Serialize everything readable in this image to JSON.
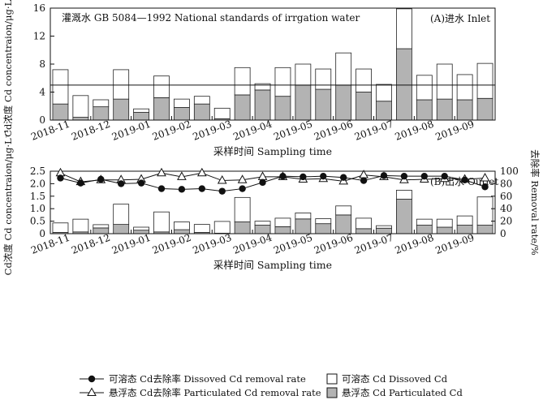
{
  "chart_data": [
    {
      "id": "inlet",
      "type": "bar",
      "panel_label": "(A)进水 Inlet",
      "annotation": "灌溉水 GB 5084—1992 National standards of irrgation water",
      "reference_line": 5,
      "ylabel": "Cd浓度 Cd concentraion/μg·L⁻¹",
      "xlabel": "采样时间 Sampling time",
      "ylim": [
        0,
        16
      ],
      "yticks": [
        0,
        4,
        8,
        12,
        16
      ],
      "categories": [
        "2018-11",
        "2018-11",
        "2018-12",
        "2018-12",
        "2019-01",
        "2019-01",
        "2019-02",
        "2019-02",
        "2019-03",
        "2019-03",
        "2019-04",
        "2019-04",
        "2019-05",
        "2019-05",
        "2019-06",
        "2019-06",
        "2019-07",
        "2019-07",
        "2019-08",
        "2019-08",
        "2019-09",
        "2019-09"
      ],
      "xtick_labels": [
        "2018-11",
        "2018-12",
        "2019-01",
        "2019-02",
        "2019-03",
        "2019-04",
        "2019-05",
        "2019-06",
        "2019-07",
        "2019-08",
        "2019-09"
      ],
      "stacked": true,
      "series": [
        {
          "name": "悬浮态 Cd  Particulated Cd",
          "color": "#b3b3b3",
          "values": [
            2.3,
            0.4,
            1.9,
            3.0,
            1.1,
            3.2,
            1.8,
            2.3,
            0.2,
            3.6,
            4.3,
            3.4,
            5.0,
            4.4,
            5.0,
            4.0,
            2.7,
            10.2,
            2.9,
            3.0,
            2.9,
            3.1
          ]
        },
        {
          "name": "可溶态 Cd  Dissoved Cd",
          "color": "#ffffff",
          "values": [
            4.9,
            3.1,
            1.0,
            4.2,
            0.5,
            3.1,
            1.2,
            1.1,
            1.5,
            3.9,
            0.9,
            4.1,
            3.0,
            2.9,
            4.6,
            3.3,
            2.4,
            5.7,
            3.5,
            5.0,
            3.6,
            5.0
          ]
        }
      ]
    },
    {
      "id": "outlet",
      "type": "bar",
      "panel_label": "(B)出水 Outlet",
      "ylabel": "Cd浓度 Cd concentraion/μg·L⁻¹",
      "y2label": "去除率 Removal rate/%",
      "xlabel": "采样时间 Sampling time",
      "ylim": [
        0,
        2.5
      ],
      "yticks": [
        0,
        0.5,
        1.0,
        1.5,
        2.0,
        2.5
      ],
      "y2lim": [
        0,
        100
      ],
      "y2ticks": [
        0,
        20,
        40,
        60,
        80,
        100
      ],
      "categories": [
        "2018-11",
        "2018-11",
        "2018-12",
        "2018-12",
        "2019-01",
        "2019-01",
        "2019-02",
        "2019-02",
        "2019-03",
        "2019-03",
        "2019-04",
        "2019-04",
        "2019-05",
        "2019-05",
        "2019-06",
        "2019-06",
        "2019-07",
        "2019-07",
        "2019-08",
        "2019-08",
        "2019-09",
        "2019-09"
      ],
      "xtick_labels": [
        "2018-11",
        "2018-12",
        "2019-01",
        "2019-02",
        "2019-03",
        "2019-04",
        "2019-05",
        "2019-06",
        "2019-07",
        "2019-08",
        "2019-09"
      ],
      "stacked": true,
      "series": [
        {
          "name": "悬浮态 Cd  Particulated Cd",
          "color": "#b3b3b3",
          "values": [
            0.05,
            0.07,
            0.23,
            0.37,
            0.14,
            0.07,
            0.16,
            0.05,
            0.02,
            0.47,
            0.34,
            0.28,
            0.59,
            0.4,
            0.75,
            0.2,
            0.22,
            1.38,
            0.34,
            0.26,
            0.34,
            0.34
          ]
        },
        {
          "name": "可溶态 Cd  Dissoved Cd",
          "color": "#ffffff",
          "values": [
            0.38,
            0.51,
            0.13,
            0.81,
            0.12,
            0.8,
            0.31,
            0.32,
            0.47,
            0.98,
            0.16,
            0.34,
            0.24,
            0.2,
            0.36,
            0.42,
            0.1,
            0.36,
            0.24,
            0.32,
            0.37,
            1.13
          ]
        },
        {
          "name": "可溶态 Cd去除率  Dissoved Cd removal rate",
          "type": "line",
          "axis": "right",
          "marker": "circle",
          "values": [
            89,
            81,
            87,
            80,
            81,
            72,
            71,
            72,
            68,
            72,
            82,
            92,
            91,
            92,
            90,
            85,
            93,
            92,
            92,
            92,
            86,
            75
          ]
        },
        {
          "name": "悬浮态 Cd去除率  Particulated Cd removal rate",
          "type": "line",
          "axis": "right",
          "marker": "triangle",
          "values": [
            97,
            83,
            86,
            86,
            87,
            97,
            91,
            97,
            85,
            86,
            91,
            91,
            87,
            88,
            84,
            94,
            91,
            86,
            87,
            88,
            87,
            89
          ]
        }
      ]
    }
  ],
  "legend": [
    {
      "label": "可溶态 Cd去除率  Dissoved Cd removal rate",
      "marker": "filled-circle"
    },
    {
      "label": "可溶态 Cd  Dissoved Cd",
      "marker": "white-box"
    },
    {
      "label": "悬浮态 Cd去除率  Particulated Cd removal rate",
      "marker": "open-triangle"
    },
    {
      "label": "悬浮态 Cd  Particulated Cd",
      "marker": "gray-box"
    }
  ]
}
